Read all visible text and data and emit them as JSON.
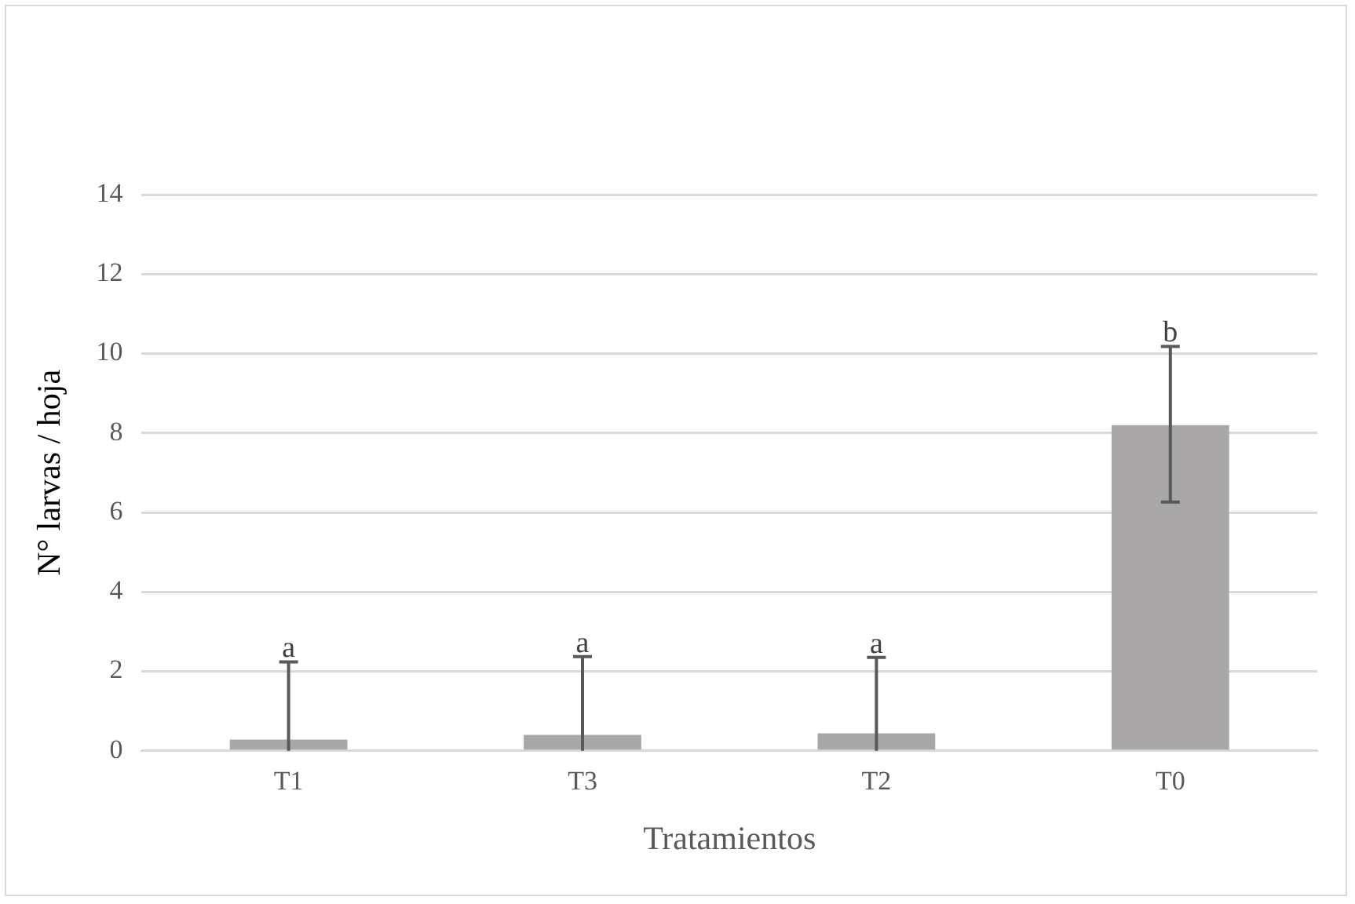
{
  "chart_data": {
    "type": "bar",
    "xlabel": "Tratamientos",
    "ylabel": "N° larvas / hoja",
    "categories": [
      "T1",
      "T3",
      "T2",
      "T0"
    ],
    "values": [
      0.28,
      0.4,
      0.44,
      8.2
    ],
    "errors": [
      [
        0,
        2.24
      ],
      [
        0,
        2.37
      ],
      [
        0,
        2.35
      ],
      [
        6.26,
        10.18
      ]
    ],
    "color": "#a9a7a7",
    "ylim": [
      0,
      14
    ],
    "yticks": [
      0,
      2,
      4,
      6,
      8,
      10,
      12,
      14
    ],
    "grid": "y",
    "legend": false,
    "annotations": [
      {
        "text": "a",
        "x": "T1",
        "y": 2.24
      },
      {
        "text": "a",
        "x": "T3",
        "y": 2.37
      },
      {
        "text": "a",
        "x": "T2",
        "y": 2.35
      },
      {
        "text": "b",
        "x": "T0",
        "y": 10.18
      }
    ]
  }
}
